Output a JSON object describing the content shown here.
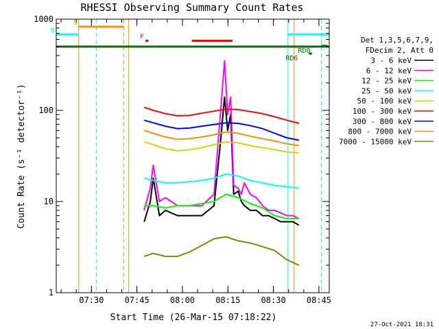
{
  "chart_data": {
    "type": "line",
    "title": "RHESSI Observing Summary Count Rates",
    "xlabel": "Start Time (26-Mar-15 07:18:22)",
    "ylabel": "Count Rate (s⁻¹ detector⁻¹)",
    "yscale": "log",
    "ylim": [
      1,
      1000
    ],
    "y_ticks": [
      "1",
      "10",
      "100",
      "1000"
    ],
    "x_range_minutes": [
      0,
      90
    ],
    "x_ticks": [
      {
        "t": 11.6,
        "label": "07:30"
      },
      {
        "t": 26.6,
        "label": "07:45"
      },
      {
        "t": 41.6,
        "label": "08:00"
      },
      {
        "t": 56.6,
        "label": "08:15"
      },
      {
        "t": 71.6,
        "label": "08:30"
      },
      {
        "t": 86.6,
        "label": "08:45"
      }
    ],
    "legend_header": [
      "Det 1,3,5,6,7,9,",
      "FDecim 2, Att 0"
    ],
    "series": [
      {
        "name": "3 - 6 keV",
        "color": "#000000",
        "x": [
          29,
          31,
          32,
          34,
          36,
          40,
          44,
          48,
          52,
          54,
          55.5,
          56.5,
          57.5,
          58.5,
          60,
          61,
          62,
          64,
          66,
          68,
          70,
          72,
          74,
          76,
          78,
          80
        ],
        "y": [
          6,
          10,
          18,
          7,
          8,
          7,
          7,
          7,
          9,
          40,
          140,
          60,
          90,
          12,
          13,
          10,
          9,
          8,
          8,
          7,
          7,
          6.5,
          6,
          6,
          6,
          5.5
        ]
      },
      {
        "name": "6 - 12 keV",
        "color": "#ff00ff",
        "x": [
          29,
          31,
          32,
          34,
          36,
          40,
          44,
          48,
          52,
          54,
          55.5,
          56.5,
          57.5,
          58.5,
          60,
          61,
          62,
          64,
          66,
          68,
          70,
          72,
          74,
          76,
          78,
          80
        ],
        "y": [
          8,
          14,
          25,
          10,
          11,
          9,
          9,
          9,
          12,
          80,
          350,
          90,
          140,
          15,
          14,
          12,
          16,
          12,
          11,
          9,
          8,
          8,
          7.5,
          7,
          7,
          6.5
        ]
      },
      {
        "name": "12 - 25 keV",
        "color": "#00ff00",
        "x": [
          29,
          32,
          36,
          40,
          44,
          48,
          52,
          56,
          60,
          64,
          68,
          72,
          76,
          80
        ],
        "y": [
          9,
          9,
          8.5,
          9,
          9,
          9.5,
          10,
          12,
          11,
          9.5,
          8.5,
          7,
          6.5,
          6.5
        ]
      },
      {
        "name": "25 - 50 keV",
        "color": "#00ffff",
        "x": [
          29,
          32,
          36,
          40,
          44,
          48,
          52,
          56,
          60,
          64,
          68,
          72,
          76,
          80
        ],
        "y": [
          18,
          17,
          16,
          16,
          16.5,
          17,
          18,
          20,
          19,
          17,
          16,
          15,
          14.5,
          14
        ]
      },
      {
        "name": "50 - 100 keV",
        "color": "#e0d000",
        "x": [
          29,
          32,
          36,
          40,
          44,
          48,
          52,
          56,
          60,
          64,
          68,
          72,
          76,
          80
        ],
        "y": [
          45,
          42,
          38,
          36,
          37,
          39,
          42,
          45,
          44,
          41,
          39,
          37,
          35,
          34
        ]
      },
      {
        "name": "100 - 300 keV",
        "color": "#ff0000",
        "x": [
          29,
          32,
          36,
          40,
          44,
          48,
          52,
          56,
          60,
          64,
          68,
          72,
          76,
          80
        ],
        "y": [
          108,
          100,
          92,
          87,
          88,
          93,
          98,
          103,
          102,
          97,
          92,
          85,
          78,
          72
        ]
      },
      {
        "name": "300 - 800 keV",
        "color": "#0000ff",
        "x": [
          29,
          32,
          36,
          40,
          44,
          48,
          52,
          56,
          60,
          64,
          68,
          72,
          76,
          80
        ],
        "y": [
          78,
          73,
          67,
          63,
          64,
          67,
          70,
          73,
          72,
          68,
          63,
          56,
          50,
          47
        ]
      },
      {
        "name": "800 - 7000 keV",
        "color": "#ff8c00",
        "x": [
          29,
          32,
          36,
          40,
          44,
          48,
          52,
          56,
          60,
          64,
          68,
          72,
          76,
          80
        ],
        "y": [
          60,
          56,
          51,
          48,
          49,
          51,
          54,
          58,
          56,
          52,
          49,
          46,
          43,
          41
        ]
      },
      {
        "name": "7000 - 15000 keV",
        "color": "#8b8000",
        "x": [
          29,
          32,
          36,
          40,
          44,
          48,
          52,
          56,
          60,
          64,
          68,
          72,
          76,
          80
        ],
        "y": [
          2.5,
          2.7,
          2.5,
          2.5,
          2.8,
          3.3,
          3.9,
          4.1,
          3.7,
          3.5,
          3.2,
          2.9,
          2.3,
          2.0
        ]
      }
    ],
    "flag_bars": [
      {
        "label": "S",
        "color": "#ff8c00",
        "t0": 7.4,
        "t1": 22.2,
        "y": 827
      },
      {
        "label": "N",
        "color": "#00ffff",
        "t0": 0,
        "t1": 7.4,
        "y": 680
      },
      {
        "label": "F",
        "color": "#ff0000",
        "t0": 29.4,
        "t1": 30.4,
        "y": 580
      },
      {
        "label": "",
        "color": "#ff0000",
        "t0": 44.7,
        "t1": 58.1,
        "y": 580
      },
      {
        "label": "",
        "color": "#00ffff",
        "t0": 76.4,
        "t1": 90,
        "y": 680
      },
      {
        "label": "",
        "color": "#007000",
        "t0": 0,
        "t1": 90,
        "y": 500
      },
      {
        "label": "RD6",
        "color": "#007000",
        "t0": 83.3,
        "t1": 84.3,
        "y": 420
      },
      {
        "label": "RD0",
        "color": "#007000",
        "t0": 87.4,
        "t1": 89.4,
        "y": 510
      }
    ],
    "vlines": [
      {
        "t": 7.4,
        "color": "#ff8c00",
        "style": "solid"
      },
      {
        "t": 13.2,
        "color": "#00ffff",
        "style": "dashed"
      },
      {
        "t": 22.2,
        "color": "#ff8c00",
        "style": "dashed"
      },
      {
        "t": 23.9,
        "color": "#ff8c00",
        "style": "solid"
      },
      {
        "t": 76.4,
        "color": "#00ffff",
        "style": "solid"
      },
      {
        "t": 78.4,
        "color": "#ff8c00",
        "style": "solid"
      },
      {
        "t": 87.4,
        "color": "#00ffff",
        "style": "dashed"
      }
    ],
    "footer_stamp": "27-Oct-2021 18:31"
  }
}
